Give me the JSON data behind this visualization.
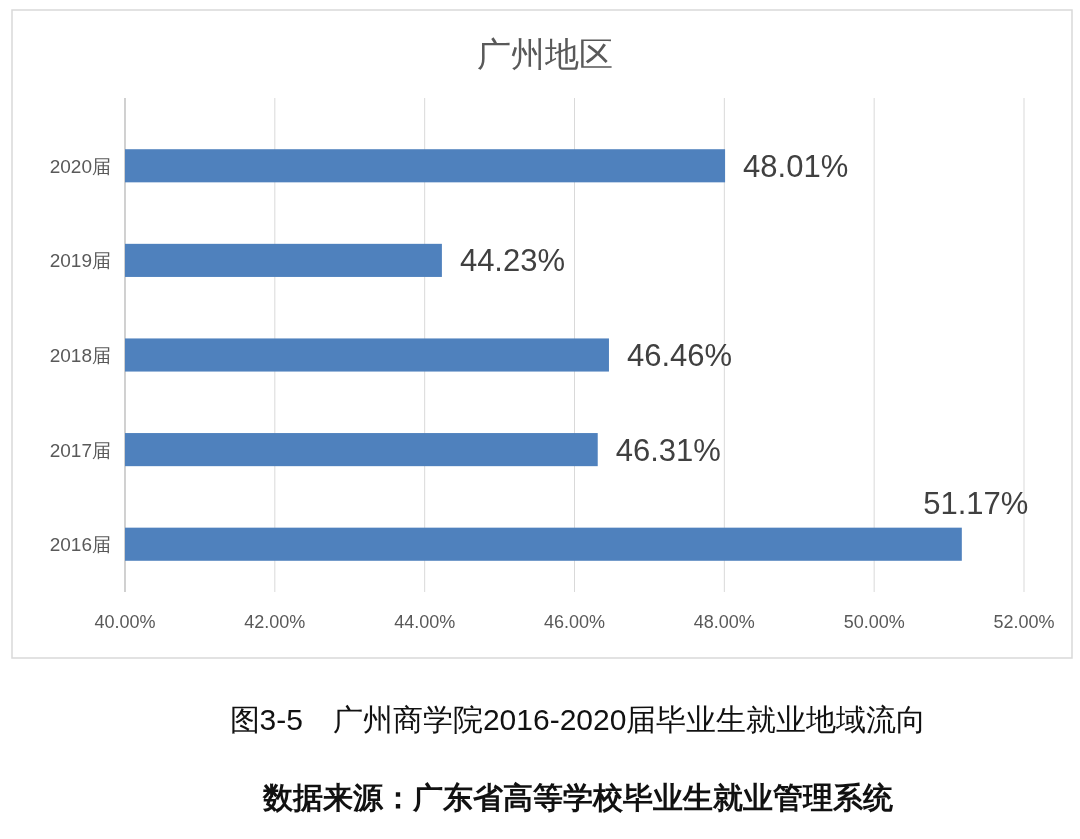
{
  "chart_data": {
    "type": "bar",
    "orientation": "horizontal",
    "title": "广州地区",
    "categories": [
      "2020届",
      "2019届",
      "2018届",
      "2017届",
      "2016届"
    ],
    "values": [
      48.01,
      44.23,
      46.46,
      46.31,
      51.17
    ],
    "value_labels": [
      "48.01%",
      "44.23%",
      "46.46%",
      "46.31%",
      "51.17%"
    ],
    "color": "#4f81bd",
    "xlim": [
      40,
      52
    ],
    "xticks": [
      {
        "value": 40,
        "label": "40.00%"
      },
      {
        "value": 42,
        "label": "42.00%"
      },
      {
        "value": 44,
        "label": "44.00%"
      },
      {
        "value": 46,
        "label": "46.00%"
      },
      {
        "value": 48,
        "label": "48.00%"
      },
      {
        "value": 50,
        "label": "50.00%"
      },
      {
        "value": 52,
        "label": "52.00%"
      }
    ],
    "grid": "x",
    "annotations": [
      "图3-5　广州商学院2016-2020届毕业生就业地域流向",
      "数据来源：广东省高等学校毕业生就业管理系统"
    ]
  }
}
